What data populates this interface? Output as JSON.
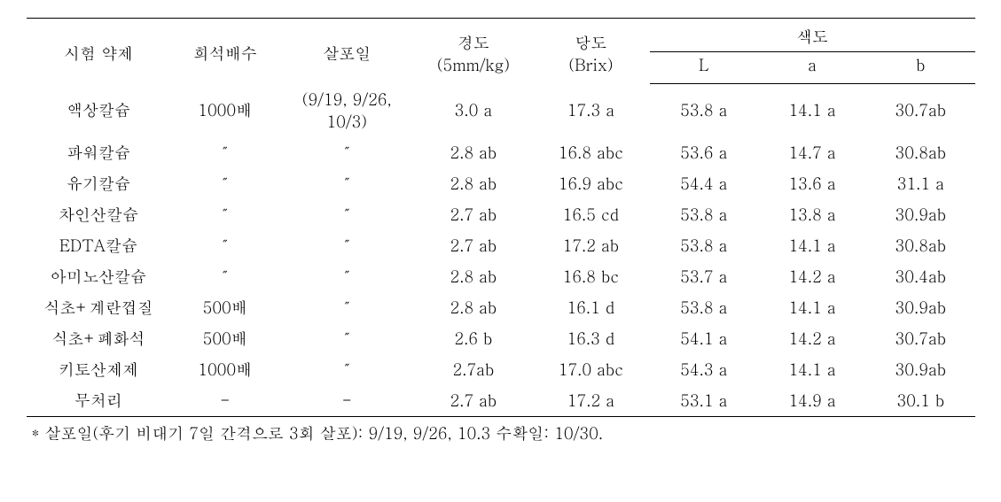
{
  "table": {
    "headers": {
      "agent": "시험 약제",
      "dilution": "희석배수",
      "spray": "살포일",
      "hardness_top": "경도",
      "hardness_bottom": "(5mm/kg)",
      "sugar_top": "당도",
      "sugar_bottom": "(Brix)",
      "color": "색도",
      "color_L": "L",
      "color_a": "a",
      "color_b": "b"
    },
    "rows": [
      {
        "agent": "액상칼슘",
        "dilution": "1000배",
        "spray": "(9/19, 9/26, 10/3)",
        "hardness": "3.0 a",
        "sugar": "17.3 a",
        "L": "53.8 a",
        "a": "14.1 a",
        "b": "30.7ab"
      },
      {
        "agent": "파워칼슘",
        "dilution": "″",
        "spray": "″",
        "hardness": "2.8 ab",
        "sugar": "16.8 abc",
        "L": "53.6 a",
        "a": "14.7 a",
        "b": "30.8ab"
      },
      {
        "agent": "유기칼슘",
        "dilution": "″",
        "spray": "″",
        "hardness": "2.8 ab",
        "sugar": "16.9 abc",
        "L": "54.4 a",
        "a": "13.6 a",
        "b": "31.1 a"
      },
      {
        "agent": "차인산칼슘",
        "dilution": "″",
        "spray": "″",
        "hardness": "2.7 ab",
        "sugar": "16.5 cd",
        "L": "53.8 a",
        "a": "13.8 a",
        "b": "30.9ab"
      },
      {
        "agent": "EDTA칼슘",
        "dilution": "″",
        "spray": "″",
        "hardness": "2.7 ab",
        "sugar": "17.2 ab",
        "L": "53.8 a",
        "a": "14.1 a",
        "b": "30.8ab"
      },
      {
        "agent": "아미노산칼슘",
        "dilution": "″",
        "spray": "″",
        "hardness": "2.8 ab",
        "sugar": "16.8 bc",
        "L": "53.7 a",
        "a": "14.2 a",
        "b": "30.4ab"
      },
      {
        "agent": "식초+계란껍질",
        "dilution": "500배",
        "spray": "″",
        "hardness": "2.8 ab",
        "sugar": "16.1 d",
        "L": "53.8 a",
        "a": "14.1 a",
        "b": "30.9ab"
      },
      {
        "agent": "식초+폐화석",
        "dilution": "500배",
        "spray": "″",
        "hardness": "2.6 b",
        "sugar": "16.3 d",
        "L": "54.1 a",
        "a": "14.2 a",
        "b": "30.7ab"
      },
      {
        "agent": "키토산제제",
        "dilution": "1000배",
        "spray": "″",
        "hardness": "2.7ab",
        "sugar": "17.0 abc",
        "L": "54.3 a",
        "a": "14.1 a",
        "b": "30.9ab"
      },
      {
        "agent": "무처리",
        "dilution": "-",
        "spray": "-",
        "hardness": "2.7 ab",
        "sugar": "17.2 a",
        "L": "53.1 a",
        "a": "14.9 a",
        "b": "30.1 b"
      }
    ]
  },
  "footnote": "* 살포일(후기 비대기 7일 간격으로 3회 살포): 9/19, 9/26, 10.3 수확일: 10/30."
}
